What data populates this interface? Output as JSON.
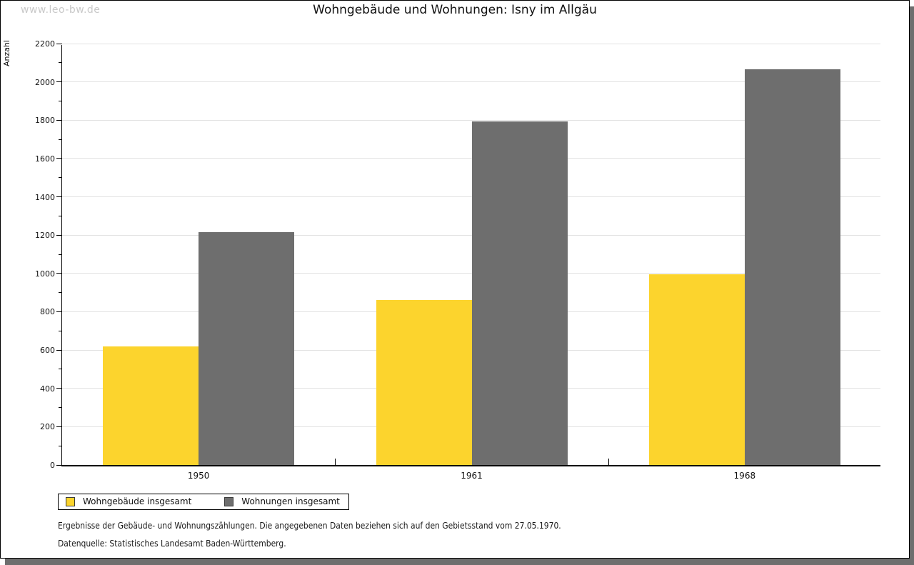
{
  "page": {
    "watermark": "www.leo-bw.de"
  },
  "chart_data": {
    "type": "bar",
    "title": "Wohngebäude und Wohnungen: Isny im Allgäu",
    "xlabel": "",
    "ylabel": "Anzahl",
    "categories": [
      "1950",
      "1961",
      "1968"
    ],
    "series": [
      {
        "name": "Wohngebäude insgesamt",
        "color": "#FCD42D",
        "values": [
          620,
          860,
          995
        ]
      },
      {
        "name": "Wohnungen insgesamt",
        "color": "#6E6E6E",
        "values": [
          1215,
          1795,
          2065
        ]
      }
    ],
    "ylim": [
      0,
      2200
    ],
    "ytick_step": 200,
    "yminor_step": 100,
    "grid": true,
    "legend_position": "bottom-left"
  },
  "footnotes": {
    "line1": "Ergebnisse der Gebäude- und Wohnungszählungen. Die angegebenen Daten beziehen sich auf den Gebietsstand vom 27.05.1970.",
    "line2": "Datenquelle: Statistisches Landesamt Baden-Württemberg."
  }
}
